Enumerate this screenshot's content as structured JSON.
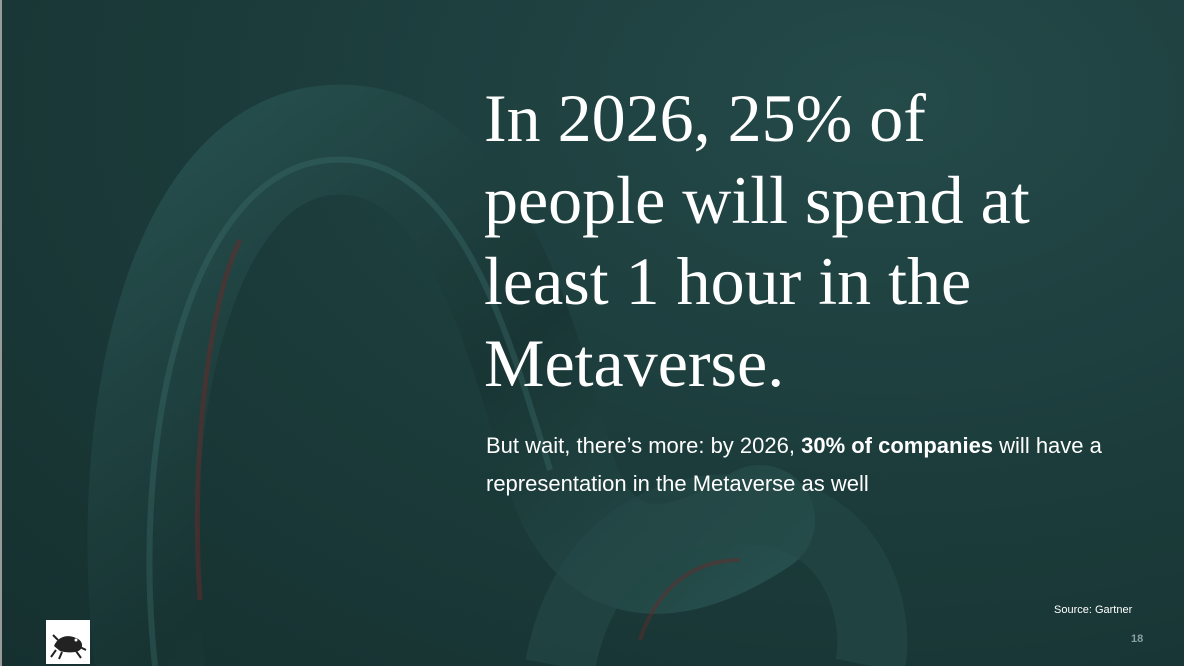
{
  "slide": {
    "headline_lines": [
      "In 2026, 25% of",
      "people will spend at",
      "least 1 hour in the",
      "Metaverse."
    ],
    "body": {
      "before": "But wait, there’s more: by 2026, ",
      "bold": "30% of companies",
      "after": " will have a representation in the Metaverse as well"
    },
    "source": "Source: Gartner",
    "page_number": 18
  }
}
